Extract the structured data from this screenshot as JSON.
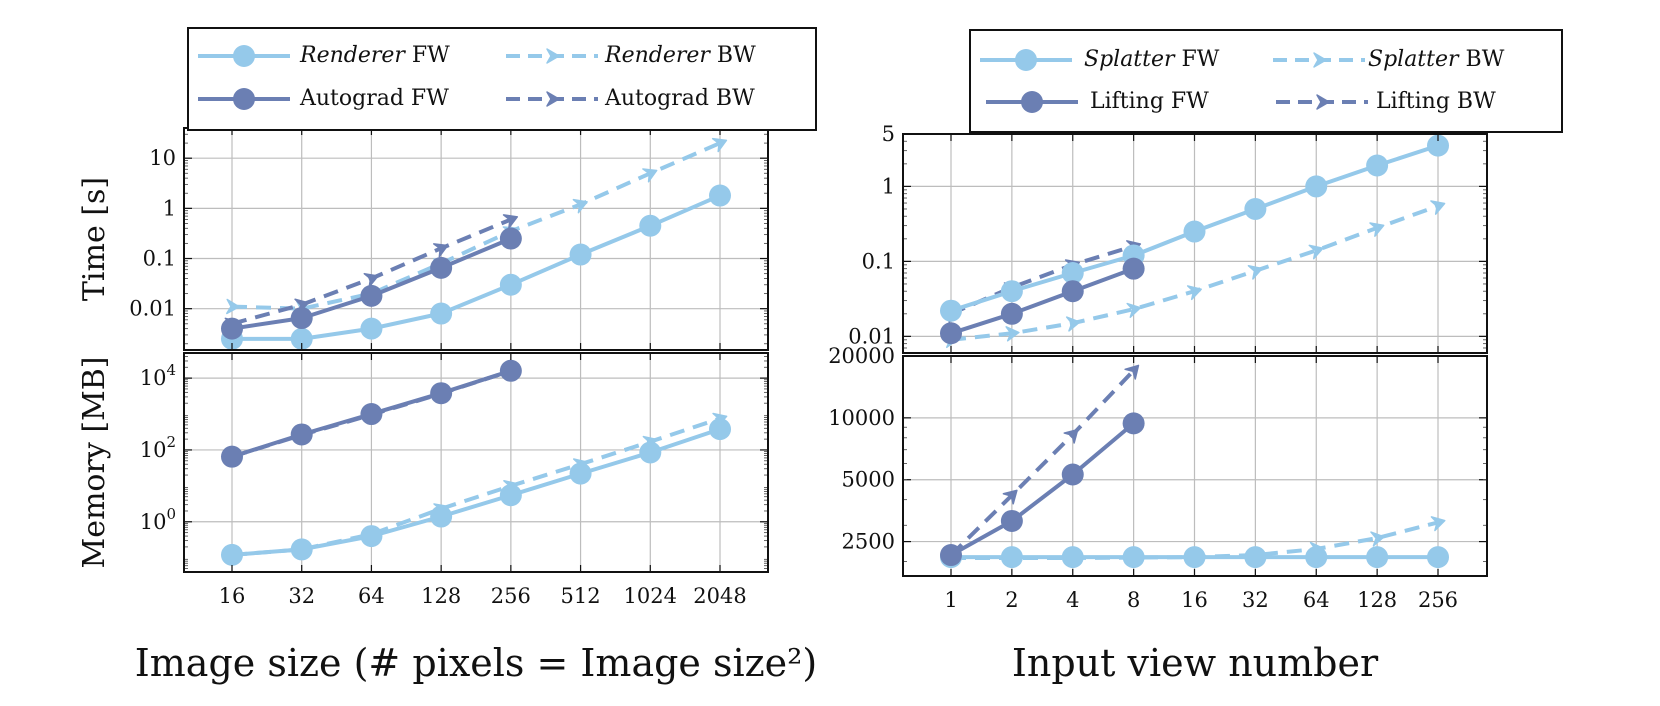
{
  "colors": {
    "light": "#95c9ea",
    "dark": "#6b7fb3"
  },
  "chart_data": [
    {
      "type": "line",
      "panel": "left-top",
      "ylabel": "Time [s]",
      "yscale": "log",
      "ylim": [
        0.0015,
        40
      ],
      "yticks": [
        0.01,
        0.1,
        1,
        10
      ],
      "ytick_labels": [
        "0.01",
        "0.1",
        "1",
        "10"
      ],
      "x": [
        16,
        32,
        64,
        128,
        256,
        512,
        1024,
        2048
      ],
      "series": [
        {
          "name": "Renderer FW",
          "style": "solid",
          "color": "light",
          "values": [
            0.0025,
            0.0025,
            0.004,
            0.008,
            0.03,
            0.12,
            0.45,
            1.8
          ]
        },
        {
          "name": "Renderer BW",
          "style": "dashed",
          "color": "light",
          "values": [
            0.011,
            0.01,
            0.02,
            0.08,
            0.35,
            1.2,
            5,
            20
          ]
        },
        {
          "name": "Autograd FW",
          "style": "solid",
          "color": "dark",
          "values": [
            0.004,
            0.0065,
            0.018,
            0.065,
            0.25,
            null,
            null,
            null
          ]
        },
        {
          "name": "Autograd BW",
          "style": "dashed",
          "color": "dark",
          "values": [
            0.005,
            0.012,
            0.04,
            0.16,
            0.6,
            null,
            null,
            null
          ]
        }
      ]
    },
    {
      "type": "line",
      "panel": "left-bottom",
      "ylabel": "Memory [MB]",
      "yscale": "log",
      "ylim": [
        0.04,
        50000
      ],
      "yticks": [
        1,
        100,
        10000
      ],
      "ytick_labels": [
        "10^0",
        "10^2",
        "10^4"
      ],
      "x": [
        16,
        32,
        64,
        128,
        256,
        512,
        1024,
        2048
      ],
      "xtick_labels": [
        "16",
        "32",
        "64",
        "128",
        "256",
        "512",
        "1024",
        "2048"
      ],
      "xlabel": "Image size (# pixels = Image size²)",
      "series": [
        {
          "name": "Renderer FW",
          "style": "solid",
          "color": "light",
          "values": [
            0.12,
            0.17,
            0.4,
            1.4,
            5.5,
            22,
            85,
            380
          ]
        },
        {
          "name": "Renderer BW",
          "style": "dashed",
          "color": "light",
          "values": [
            0.12,
            0.17,
            0.45,
            2.3,
            10,
            40,
            170,
            750
          ]
        },
        {
          "name": "Autograd FW",
          "style": "solid",
          "color": "dark",
          "values": [
            65,
            270,
            1000,
            3800,
            16000,
            null,
            null,
            null
          ]
        },
        {
          "name": "Autograd BW",
          "style": "dashed",
          "color": "dark",
          "values": [
            65,
            260,
            950,
            3700,
            16000,
            null,
            null,
            null
          ]
        }
      ]
    },
    {
      "type": "line",
      "panel": "right-top",
      "yscale": "log",
      "ylim": [
        0.006,
        5
      ],
      "yticks": [
        0.01,
        0.1,
        1,
        5
      ],
      "ytick_labels": [
        "0.01",
        "0.1",
        "1",
        "5"
      ],
      "x": [
        1,
        2,
        4,
        8,
        16,
        32,
        64,
        128,
        256
      ],
      "series": [
        {
          "name": "Splatter FW",
          "style": "solid",
          "color": "light",
          "values": [
            0.022,
            0.04,
            0.07,
            0.12,
            0.25,
            0.5,
            1.0,
            1.9,
            3.5
          ]
        },
        {
          "name": "Splatter BW",
          "style": "dashed",
          "color": "light",
          "values": [
            0.009,
            0.011,
            0.015,
            0.023,
            0.04,
            0.075,
            0.14,
            0.28,
            0.55
          ]
        },
        {
          "name": "Lifting FW",
          "style": "solid",
          "color": "dark",
          "values": [
            0.011,
            0.02,
            0.04,
            0.08,
            null,
            null,
            null,
            null,
            null
          ]
        },
        {
          "name": "Lifting BW",
          "style": "dashed",
          "color": "dark",
          "values": [
            0.02,
            0.045,
            0.09,
            0.16,
            null,
            null,
            null,
            null,
            null
          ]
        }
      ]
    },
    {
      "type": "line",
      "panel": "right-bottom",
      "yscale": "log",
      "ylim": [
        1700,
        20000
      ],
      "yticks": [
        2500,
        5000,
        10000,
        20000
      ],
      "ytick_labels": [
        "2500",
        "5000",
        "10000",
        "20000"
      ],
      "x": [
        1,
        2,
        4,
        8,
        16,
        32,
        64,
        128,
        256
      ],
      "xtick_labels": [
        "1",
        "2",
        "4",
        "8",
        "16",
        "32",
        "64",
        "128",
        "256"
      ],
      "xlabel": "Input view number",
      "series": [
        {
          "name": "Splatter FW",
          "style": "solid",
          "color": "light",
          "values": [
            2100,
            2100,
            2100,
            2100,
            2100,
            2100,
            2100,
            2100,
            2100
          ]
        },
        {
          "name": "Splatter BW",
          "style": "dashed",
          "color": "light",
          "values": [
            2080,
            2080,
            2080,
            2090,
            2100,
            2150,
            2300,
            2600,
            3100
          ]
        },
        {
          "name": "Lifting FW",
          "style": "solid",
          "color": "dark",
          "values": [
            2150,
            3150,
            5300,
            9400,
            null,
            null,
            null,
            null,
            null
          ]
        },
        {
          "name": "Lifting BW",
          "style": "dashed",
          "color": "dark",
          "values": [
            2150,
            4200,
            8300,
            17000,
            null,
            null,
            null,
            null,
            null
          ]
        }
      ]
    }
  ],
  "legends": {
    "left": {
      "row1": {
        "a_italic": "Renderer",
        "a_rest": " FW",
        "b_italic": "Renderer",
        "b_rest": " BW"
      },
      "row2": {
        "a_italic": "",
        "a_rest": "Autograd FW",
        "b_italic": "",
        "b_rest": "Autograd BW"
      }
    },
    "right": {
      "row1": {
        "a_italic": "Splatter",
        "a_rest": " FW",
        "b_italic": "Splatter",
        "b_rest": " BW"
      },
      "row2": {
        "a_italic": "",
        "a_rest": "Lifting FW",
        "b_italic": "",
        "b_rest": "Lifting BW"
      }
    }
  }
}
